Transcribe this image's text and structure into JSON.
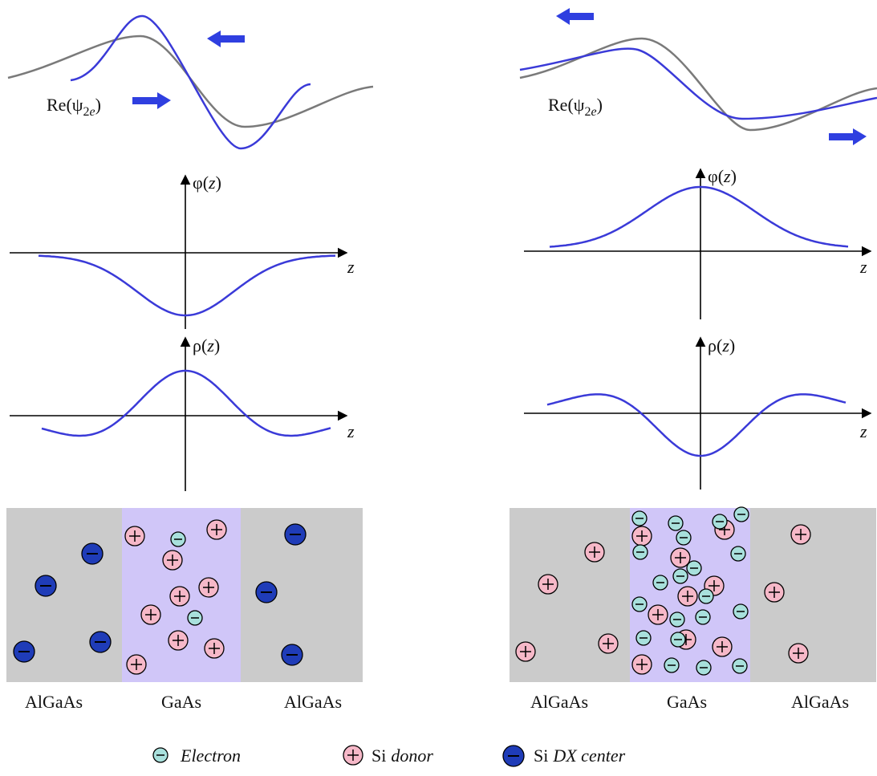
{
  "left": {
    "wave_label": {
      "text": "Re(ψ",
      "sub": "2",
      "sub_italic": "e",
      "close": ")"
    },
    "phi_label": {
      "symbol": "φ(",
      "var": "z",
      "close": ")"
    },
    "rho_label": {
      "symbol": "ρ(",
      "var": "z",
      "close": ")"
    },
    "phi_axis": "z",
    "rho_axis": "z",
    "layers": [
      "AlGaAs",
      "GaAs",
      "AlGaAs"
    ]
  },
  "right": {
    "wave_label": {
      "text": "Re(ψ",
      "sub": "2",
      "sub_italic": "e",
      "close": ")"
    },
    "phi_label": {
      "symbol": "φ(",
      "var": "z",
      "close": ")"
    },
    "rho_label": {
      "symbol": "ρ(",
      "var": "z",
      "close": ")"
    },
    "phi_axis": "z",
    "rho_axis": "z",
    "layers": [
      "AlGaAs",
      "GaAs",
      "AlGaAs"
    ]
  },
  "legend": [
    {
      "italic": "Electron"
    },
    {
      "prefix": "Si",
      "italic": "donor"
    },
    {
      "prefix": "Si",
      "italic": "DX center"
    }
  ]
}
